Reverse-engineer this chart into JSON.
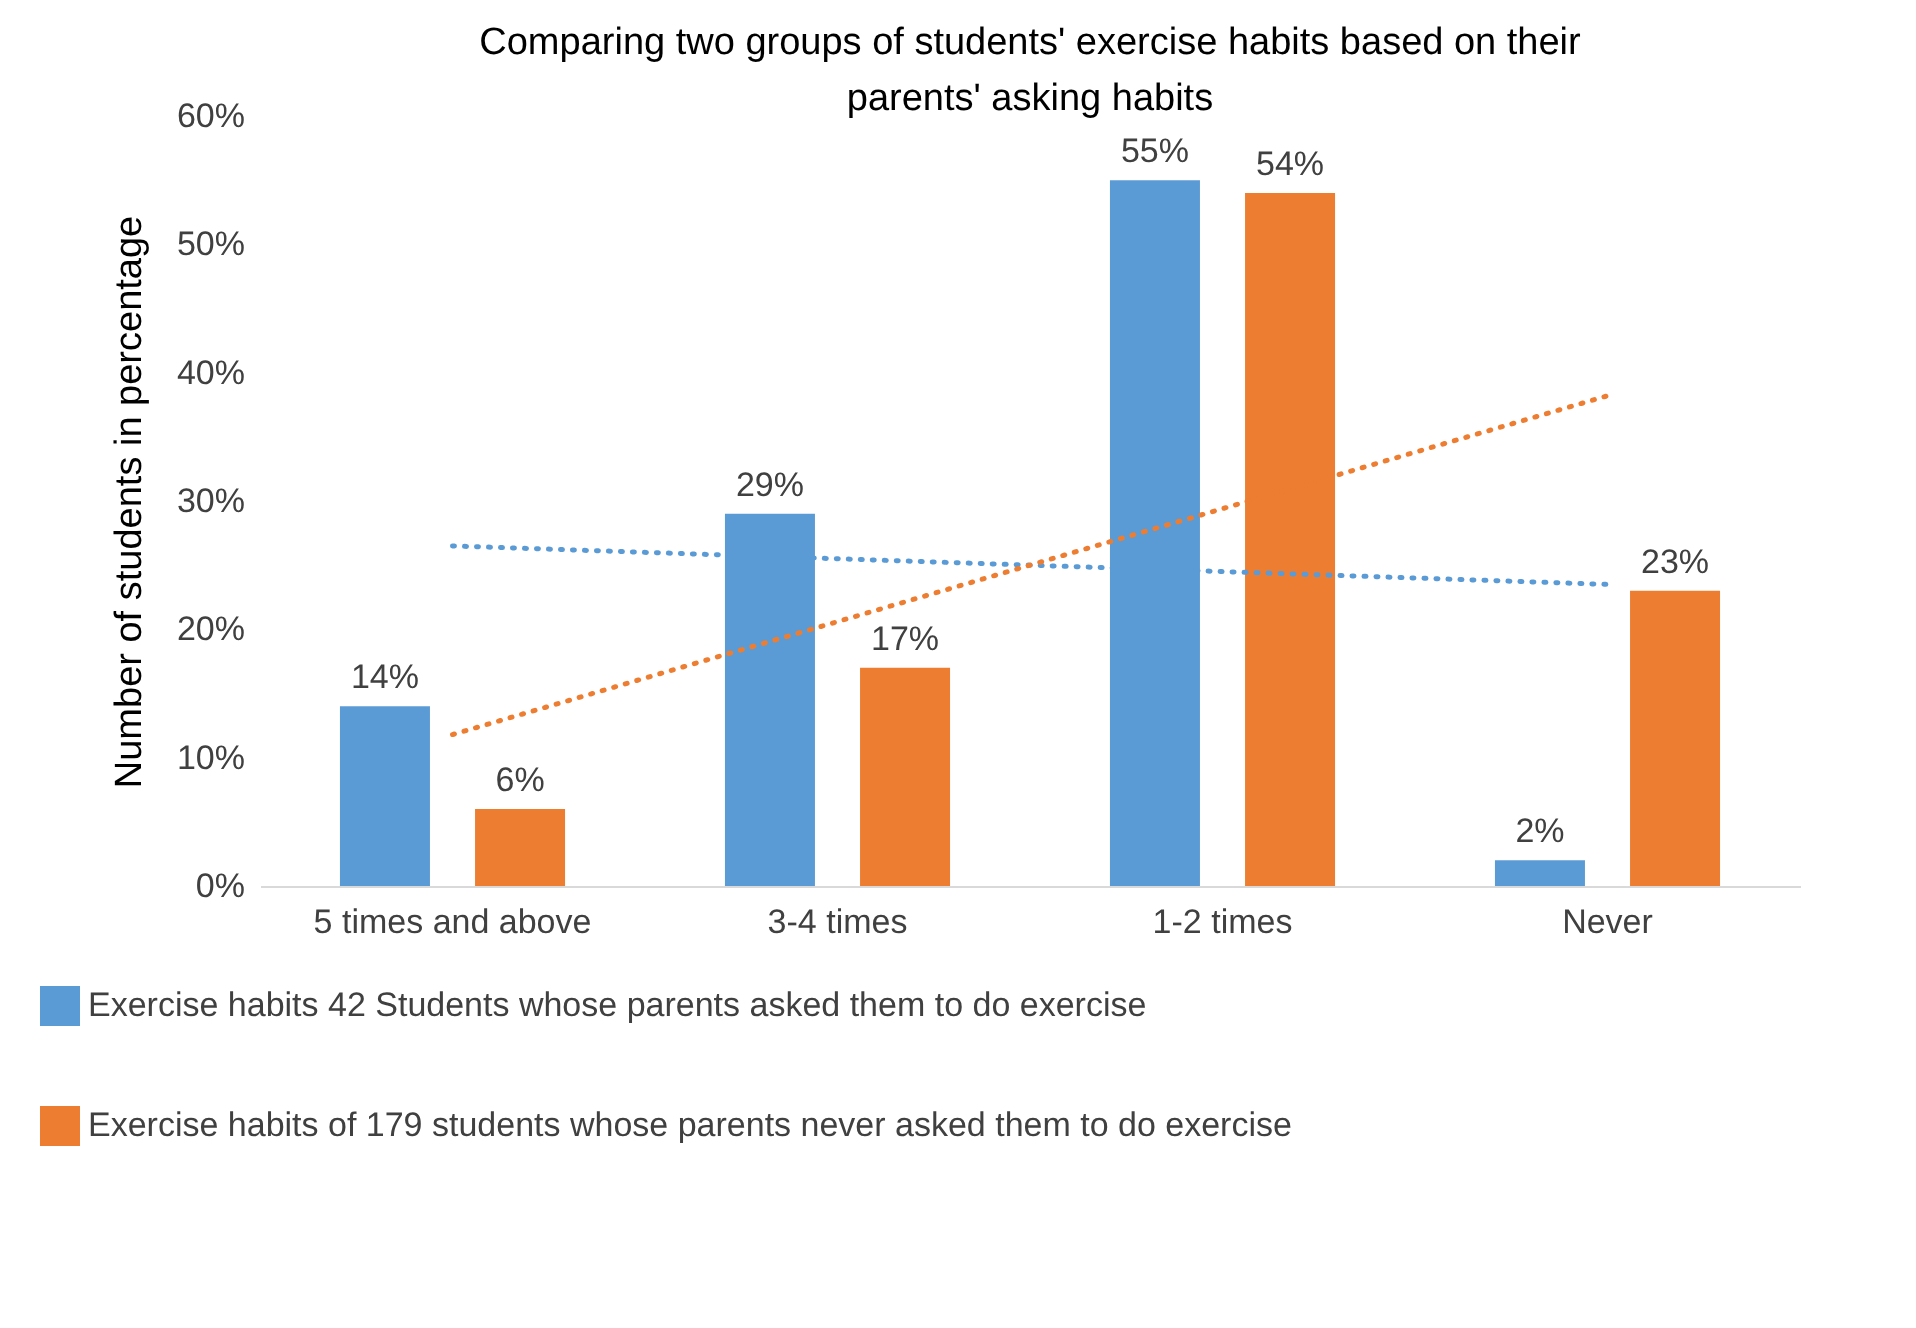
{
  "chart_data": {
    "type": "bar",
    "title": "Comparing two groups of students' exercise habits based on their parents' asking habits",
    "ylabel": "Number of students in percentage",
    "categories": [
      "5 times and above",
      "3-4 times",
      "1-2 times",
      "Never"
    ],
    "series": [
      {
        "name": "Exercise habits 42 Students whose parents asked them to do exercise",
        "color": "#5b9bd5",
        "values": [
          14,
          29,
          55,
          2
        ],
        "value_labels": [
          "14%",
          "29%",
          "55%",
          "2%"
        ]
      },
      {
        "name": "Exercise habits of 179 students whose parents never asked them to do exercise",
        "color": "#ed7d31",
        "values": [
          6,
          17,
          54,
          23
        ],
        "value_labels": [
          "6%",
          "17%",
          "54%",
          "23%"
        ]
      },
      {
        "type": "line",
        "color": "#5b9bd5",
        "line_style": "dotted",
        "x": [
          "5 times and above",
          "3-4 times",
          "1-2 times",
          "Never"
        ],
        "values": [
          26.5,
          25.5,
          24.5,
          23.5
        ]
      },
      {
        "type": "line",
        "color": "#ed7d31",
        "line_style": "dotted",
        "x": [
          "5 times and above",
          "3-4 times",
          "1-2 times",
          "Never"
        ],
        "values": [
          11.8,
          20.6,
          29.4,
          38.2
        ]
      }
    ],
    "ylim": [
      0,
      60
    ],
    "yticks": [
      {
        "value": 0,
        "label": "0%"
      },
      {
        "value": 10,
        "label": "10%"
      },
      {
        "value": 20,
        "label": "20%"
      },
      {
        "value": 30,
        "label": "30%"
      },
      {
        "value": 40,
        "label": "40%"
      },
      {
        "value": 50,
        "label": "50%"
      },
      {
        "value": 60,
        "label": "60%"
      }
    ],
    "grid": false,
    "legend": "bottom left"
  }
}
